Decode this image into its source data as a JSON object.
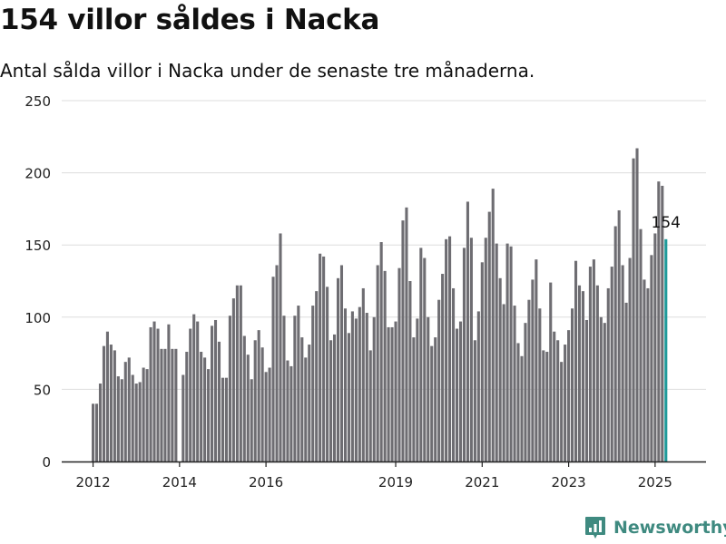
{
  "title": "154 villor såldes i Nacka",
  "subtitle": "Antal sålda villor i Nacka under de senaste tre månaderna.",
  "brand": {
    "name": "Newsworthy",
    "icon": "newsworthy-logo-icon"
  },
  "colors": {
    "bar": "#6e6d72",
    "highlight": "#1f9a9a",
    "grid": "#dddddd",
    "axis": "#222222",
    "brand": "#3f8a80"
  },
  "chart_data": {
    "type": "bar",
    "title": "154 villor såldes i Nacka",
    "xlabel": "",
    "ylabel": "",
    "ylim": [
      0,
      250
    ],
    "yticks": [
      "0",
      "50",
      "100",
      "150",
      "200",
      "250"
    ],
    "x_tick_labels": [
      "2012",
      "2014",
      "2016",
      "2019",
      "2021",
      "2023",
      "2025"
    ],
    "grid": true,
    "x_start": "2012-01",
    "x_end": "2025-06",
    "values": [
      40,
      40,
      54,
      80,
      90,
      81,
      77,
      59,
      57,
      69,
      72,
      60,
      54,
      55,
      65,
      64,
      93,
      97,
      92,
      78,
      78,
      95,
      78,
      78,
      0,
      60,
      76,
      92,
      102,
      97,
      76,
      72,
      64,
      94,
      98,
      83,
      58,
      58,
      101,
      113,
      122,
      122,
      87,
      74,
      57,
      84,
      91,
      79,
      62,
      65,
      128,
      136,
      158,
      101,
      70,
      66,
      101,
      108,
      86,
      72,
      81,
      108,
      118,
      144,
      142,
      121,
      84,
      88,
      127,
      136,
      106,
      89,
      104,
      99,
      107,
      120,
      103,
      77,
      100,
      136,
      152,
      132,
      93,
      93,
      97,
      134,
      167,
      176,
      125,
      86,
      99,
      148,
      141,
      100,
      80,
      86,
      112,
      130,
      154,
      156,
      120,
      92,
      97,
      148,
      180,
      155,
      84,
      104,
      138,
      155,
      173,
      189,
      151,
      127,
      109,
      151,
      149,
      108,
      82,
      73,
      96,
      112,
      126,
      140,
      106,
      77,
      76,
      124,
      90,
      84,
      69,
      81,
      91,
      106,
      139,
      122,
      118,
      98,
      135,
      140,
      122,
      100,
      96,
      120,
      135,
      163,
      174,
      136,
      110,
      141,
      210,
      217,
      161,
      126,
      120,
      143,
      158,
      194,
      191,
      154
    ],
    "highlight": {
      "value": 154,
      "label": "154"
    }
  }
}
